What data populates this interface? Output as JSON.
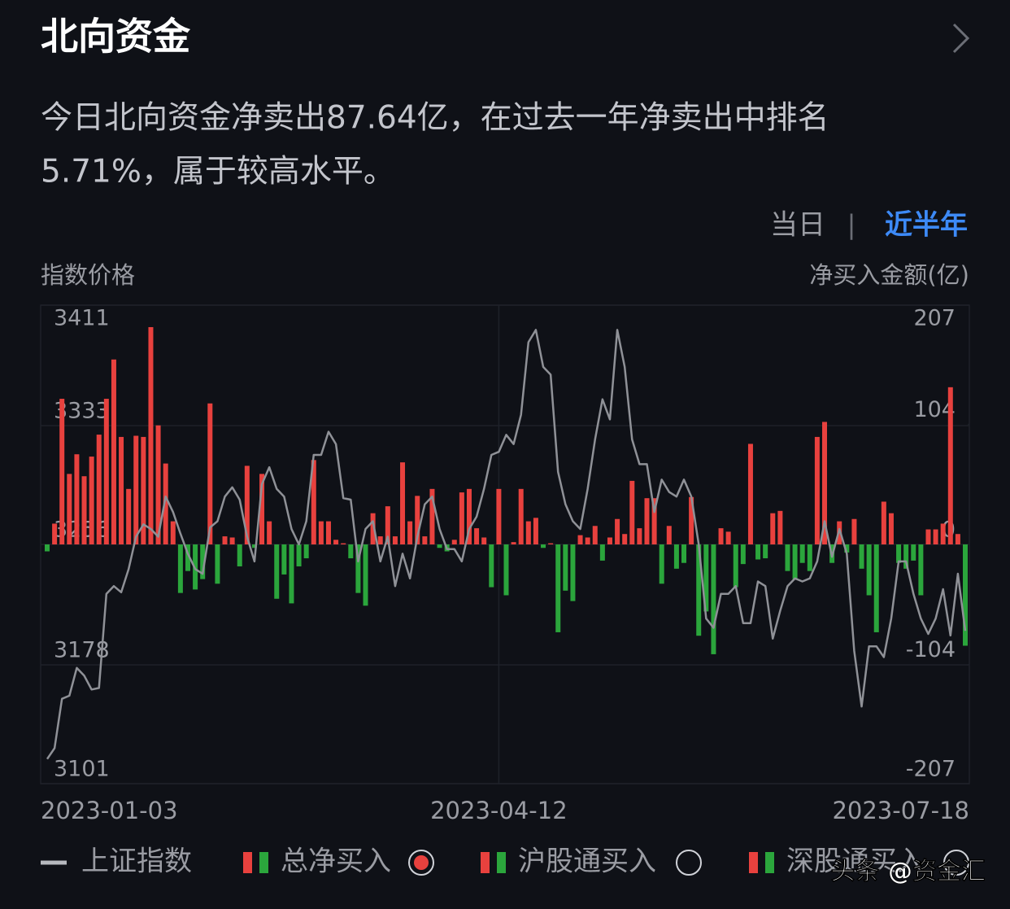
{
  "header": {
    "title": "北向资金"
  },
  "description": {
    "lines": [
      "今日北向资金净卖出87.64亿，在过去一年净卖出中排名",
      "5.71%，属于较高水平。"
    ]
  },
  "tabs": {
    "items": [
      "当日",
      "近半年"
    ],
    "separator": "|",
    "active": 1
  },
  "watermark": "头条 @资金汇",
  "chart_data": {
    "type": "bar",
    "y_axis_label": "指数价格",
    "y2_axis_label": "净买入金额(亿)",
    "categories": [
      "2023-01-03",
      null,
      null,
      null,
      null,
      null,
      null,
      null,
      null,
      null,
      null,
      null,
      null,
      null,
      null,
      null,
      null,
      null,
      null,
      null,
      null,
      null,
      null,
      null,
      null,
      null,
      null,
      null,
      null,
      null,
      null,
      null,
      null,
      null,
      null,
      null,
      null,
      null,
      null,
      null,
      null,
      null,
      null,
      null,
      null,
      null,
      null,
      null,
      null,
      null,
      null,
      null,
      null,
      null,
      null,
      null,
      null,
      null,
      null,
      null,
      null,
      "2023-04-12",
      null,
      null,
      null,
      null,
      null,
      null,
      null,
      null,
      null,
      null,
      null,
      null,
      null,
      null,
      null,
      null,
      null,
      null,
      null,
      null,
      null,
      null,
      null,
      null,
      null,
      null,
      null,
      null,
      null,
      null,
      null,
      null,
      null,
      null,
      null,
      null,
      null,
      null,
      null,
      null,
      null,
      null,
      null,
      null,
      null,
      null,
      null,
      null,
      null,
      null,
      null,
      null,
      null,
      null,
      null,
      null,
      null,
      null,
      null,
      null,
      null,
      null,
      "2023-07-18"
    ],
    "series": [
      {
        "name": "总净买入",
        "axis": "y2",
        "color": "#e8413e",
        "negative_color": "#2ba63c",
        "values": [
          -6,
          18,
          126,
          61,
          78,
          59,
          76,
          95,
          126,
          160,
          93,
          48,
          94,
          93,
          188,
          103,
          70,
          20,
          -42,
          -23,
          -39,
          -30,
          122,
          -34,
          7,
          6,
          -19,
          68,
          -3,
          61,
          20,
          -47,
          -26,
          -51,
          -19,
          -12,
          73,
          20,
          20,
          4,
          1,
          -12,
          -42,
          -53,
          27,
          7,
          33,
          7,
          71,
          20,
          42,
          7,
          48,
          -3,
          -6,
          4,
          45,
          48,
          14,
          6,
          -37,
          48,
          -44,
          2,
          48,
          20,
          23,
          -3,
          1,
          -76,
          -40,
          -49,
          8,
          6,
          16,
          -14,
          6,
          22,
          9,
          55,
          14,
          40,
          40,
          -34,
          16,
          -21,
          -16,
          41,
          -79,
          -58,
          -95,
          14,
          11,
          -37,
          -17,
          87,
          -13,
          -12,
          27,
          29,
          -23,
          -30,
          -16,
          -23,
          93,
          106,
          -16,
          20,
          -7,
          22,
          -21,
          -44,
          -76,
          37,
          27,
          -16,
          -21,
          -14,
          -44,
          13,
          13,
          18,
          136,
          9,
          -87.64
        ]
      },
      {
        "name": "上证指数",
        "type": "line",
        "axis": "y",
        "color": "#8f9197",
        "values": [
          3117,
          3124,
          3156,
          3158,
          3176,
          3171,
          3162,
          3163,
          3224,
          3229,
          3225,
          3240,
          3261,
          3269,
          3266,
          3261,
          3287,
          3277,
          3263,
          3250,
          3240,
          3237,
          3267,
          3271,
          3287,
          3293,
          3285,
          3261,
          3245,
          3295,
          3306,
          3292,
          3287,
          3266,
          3256,
          3271,
          3314,
          3314,
          3329,
          3321,
          3286,
          3285,
          3245,
          3266,
          3271,
          3245,
          3261,
          3229,
          3250,
          3234,
          3261,
          3282,
          3287,
          3266,
          3253,
          3253,
          3245,
          3266,
          3274,
          3292,
          3314,
          3316,
          3327,
          3321,
          3340,
          3387,
          3395,
          3371,
          3366,
          3303,
          3282,
          3271,
          3266,
          3292,
          3324,
          3350,
          3337,
          3395,
          3371,
          3324,
          3308,
          3308,
          3277,
          3298,
          3290,
          3287,
          3298,
          3287,
          3256,
          3208,
          3202,
          3224,
          3224,
          3229,
          3205,
          3205,
          3232,
          3229,
          3195,
          3213,
          3229,
          3234,
          3232,
          3234,
          3245,
          3271,
          3248,
          3266,
          3250,
          3187,
          3151,
          3190,
          3190,
          3183,
          3208,
          3245,
          3245,
          3224,
          3208,
          3198,
          3208,
          3227,
          3197,
          3237,
          3200
        ]
      }
    ],
    "other_options": [
      "沪股通买入",
      "深股通买入"
    ],
    "ylim": [
      3101,
      3411
    ],
    "yticks": [
      3101,
      3178,
      3256,
      3333,
      3411
    ],
    "y2lim": [
      -207,
      207
    ],
    "y2ticks": [
      -207,
      -104,
      0,
      104,
      207
    ],
    "grid": true
  }
}
